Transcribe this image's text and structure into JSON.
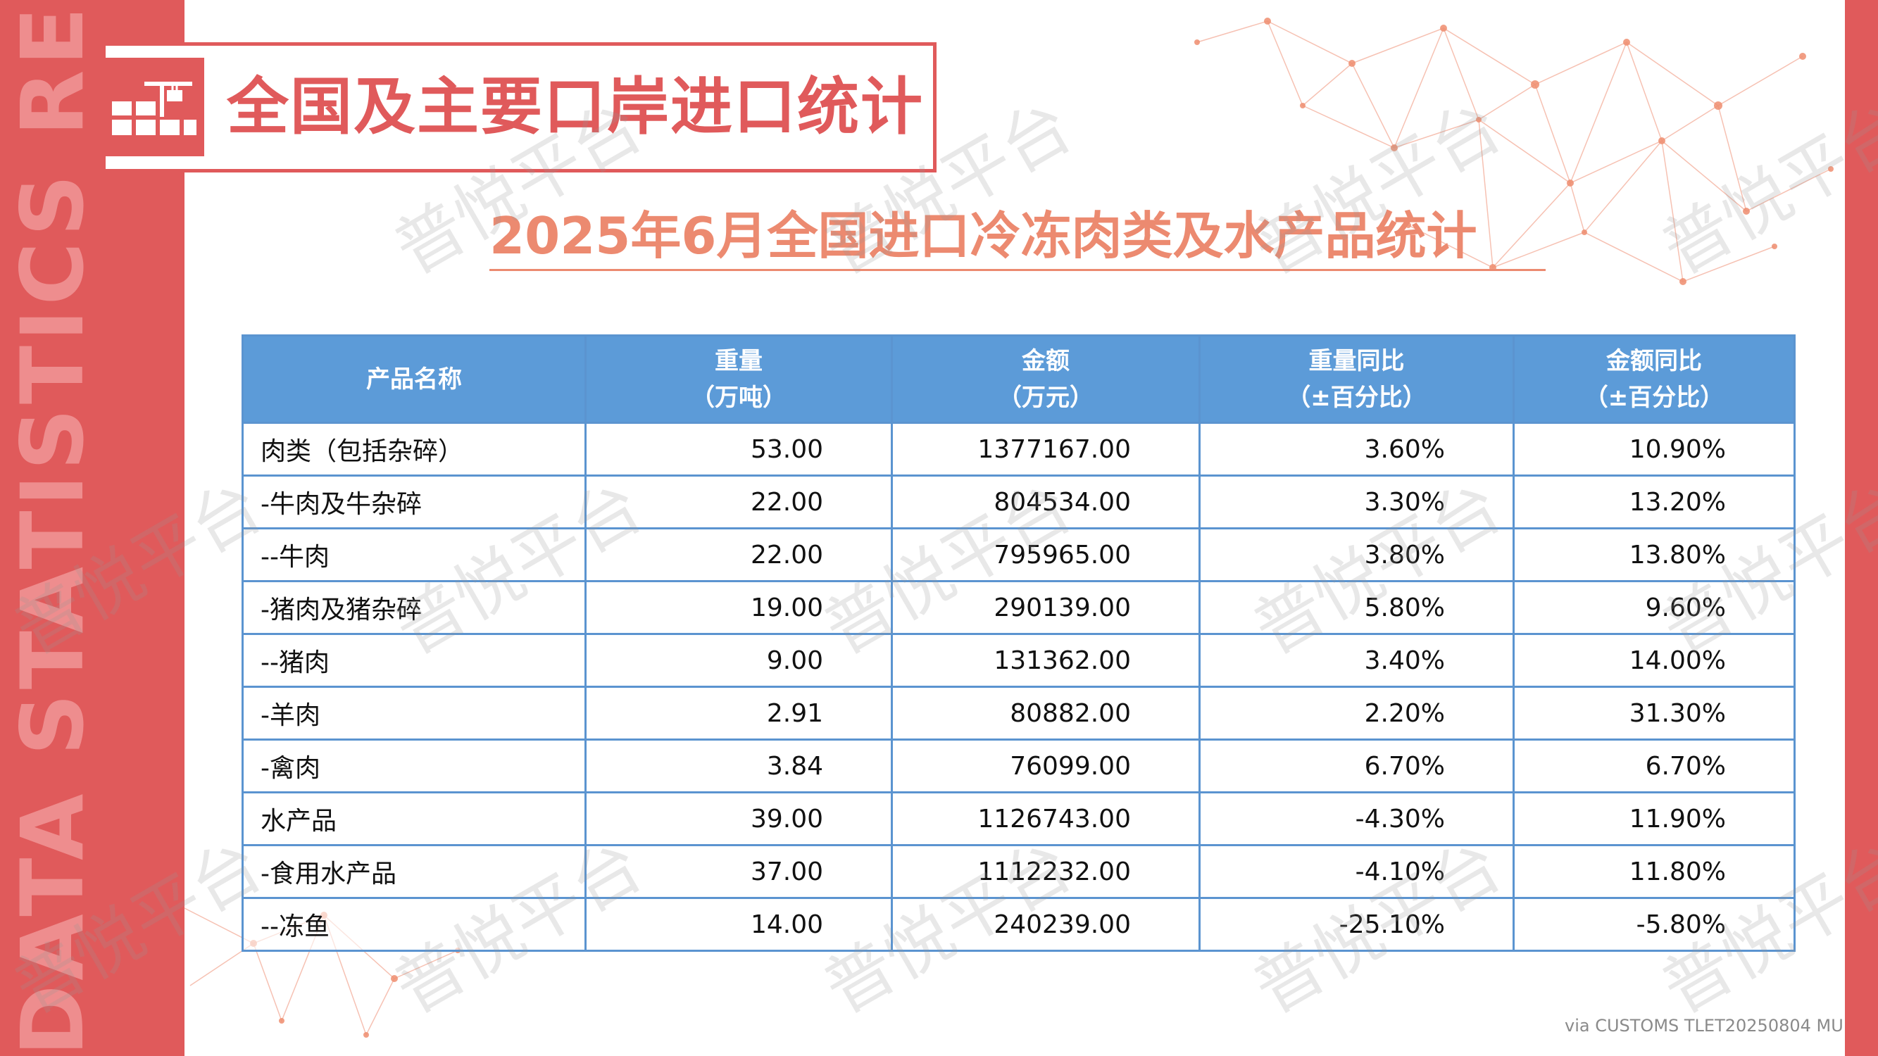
{
  "side_text": "DATA STATISTICS REPORT",
  "header": {
    "title": "全国及主要口岸进口统计"
  },
  "subtitle": "2025年6月全国进口冷冻肉类及水产品统计",
  "table": {
    "headers": [
      {
        "line1": "产品名称",
        "line2": ""
      },
      {
        "line1": "重量",
        "line2": "（万吨）"
      },
      {
        "line1": "金额",
        "line2": "（万元）"
      },
      {
        "line1": "重量同比",
        "line2": "（±百分比）"
      },
      {
        "line1": "金额同比",
        "line2": "（±百分比）"
      }
    ],
    "rows": [
      [
        "肉类（包括杂碎）",
        "53.00",
        "1377167.00",
        "3.60%",
        "10.90%"
      ],
      [
        "-牛肉及牛杂碎",
        "22.00",
        "804534.00",
        "3.30%",
        "13.20%"
      ],
      [
        "--牛肉",
        "22.00",
        "795965.00",
        "3.80%",
        "13.80%"
      ],
      [
        "-猪肉及猪杂碎",
        "19.00",
        "290139.00",
        "5.80%",
        "9.60%"
      ],
      [
        "--猪肉",
        "9.00",
        "131362.00",
        "3.40%",
        "14.00%"
      ],
      [
        "-羊肉",
        "2.91",
        "80882.00",
        "2.20%",
        "31.30%"
      ],
      [
        "-禽肉",
        "3.84",
        "76099.00",
        "6.70%",
        "6.70%"
      ],
      [
        "水产品",
        "39.00",
        "1126743.00",
        "-4.30%",
        "11.90%"
      ],
      [
        "-食用水产品",
        "37.00",
        "1112232.00",
        "-4.10%",
        "11.80%"
      ],
      [
        "--冻鱼",
        "14.00",
        "240239.00",
        "-25.10%",
        "-5.80%"
      ]
    ]
  },
  "watermark": "普悦平台",
  "source": "via CUSTOMS TLET20250804 MU",
  "colors": {
    "brand_red": "#e05a5b",
    "subtitle_orange": "#ec8a70",
    "table_header_blue": "#5c9bd8",
    "table_border": "#5b94d0"
  }
}
